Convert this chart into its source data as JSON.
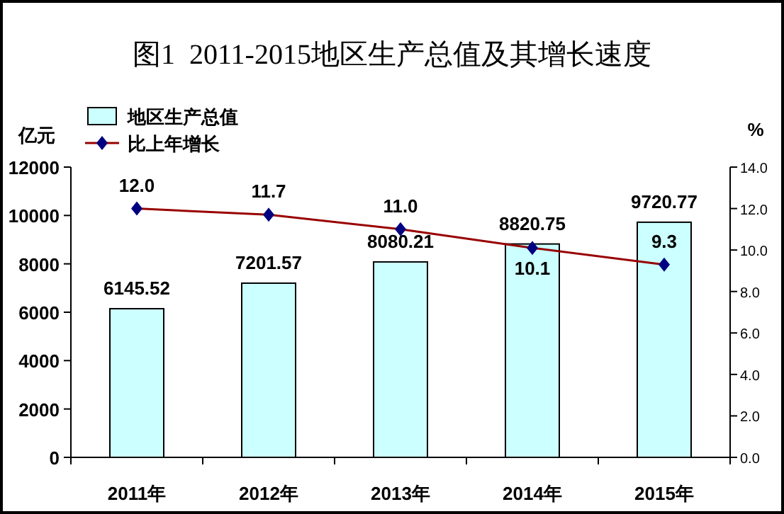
{
  "chart_data": {
    "type": "bar",
    "title": "图1  2011-2015地区生产总值及其增长速度",
    "ylabel": "亿元",
    "y2label": "%",
    "categories": [
      "2011年",
      "2012年",
      "2013年",
      "2014年",
      "2015年"
    ],
    "series": [
      {
        "name": "地区生产总值",
        "color": "#ccffff",
        "values": [
          6145.52,
          7201.57,
          8080.21,
          8820.75,
          9720.77
        ]
      },
      {
        "name": "比上年增长",
        "type": "line",
        "axis": "y2",
        "color": "#990000",
        "marker": "diamond",
        "values": [
          12.0,
          11.7,
          11.0,
          10.1,
          9.3
        ],
        "value_labels": [
          "12.0",
          "11.7",
          "11.0",
          "10.1",
          "9.3"
        ]
      }
    ],
    "ylim": [
      0,
      12000
    ],
    "yticks": [
      0,
      2000,
      4000,
      6000,
      8000,
      10000,
      12000
    ],
    "y2lim": [
      0,
      14
    ],
    "y2ticks": [
      {
        "value": 0,
        "label": "0.0"
      },
      {
        "value": 2,
        "label": "2.0"
      },
      {
        "value": 4,
        "label": "4.0"
      },
      {
        "value": 6,
        "label": "6.0"
      },
      {
        "value": 8,
        "label": "8.0"
      },
      {
        "value": 10,
        "label": "10.0"
      },
      {
        "value": 12,
        "label": "12.0"
      },
      {
        "value": 14,
        "label": "14.0"
      }
    ],
    "data_labels": true,
    "legend": "top left"
  }
}
